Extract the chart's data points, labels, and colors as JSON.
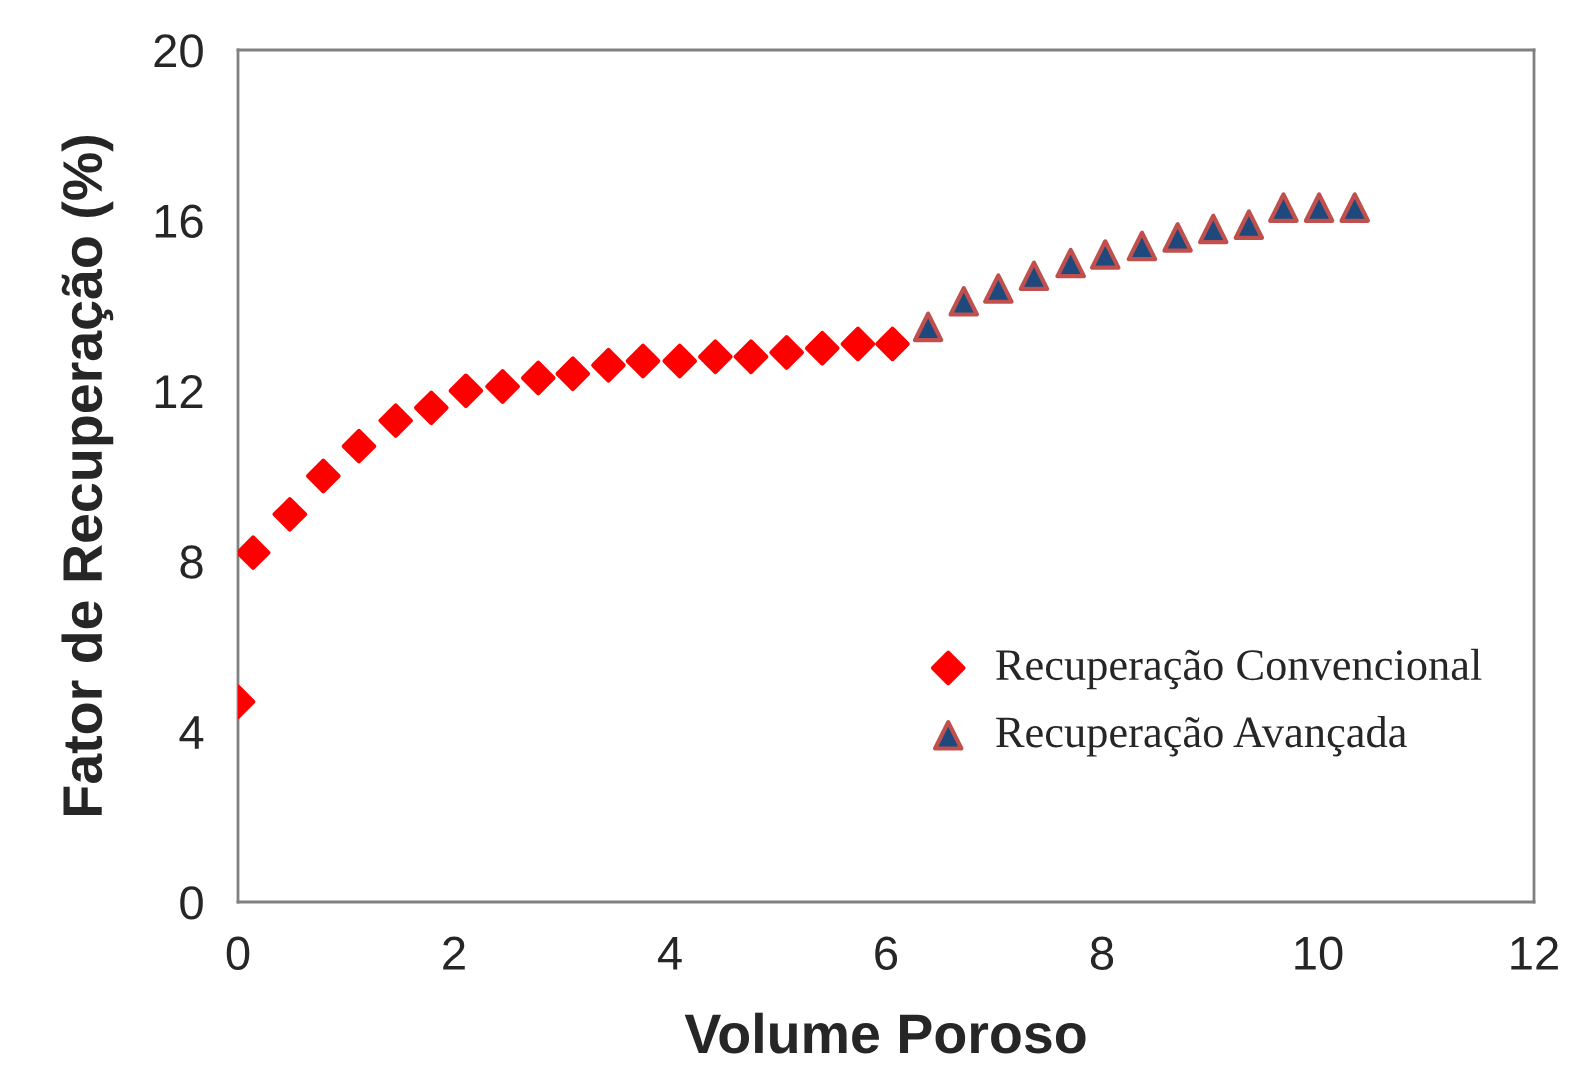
{
  "chart_data": {
    "type": "scatter",
    "xlabel": "Volume Poroso",
    "ylabel": "Fator de Recuperação (%)",
    "xlim": [
      0,
      12
    ],
    "xticks": [
      0,
      2,
      4,
      6,
      8,
      10,
      12
    ],
    "ylim": [
      0,
      20
    ],
    "yticks": [
      0,
      4,
      8,
      12,
      16,
      20
    ],
    "grid": false,
    "legend": "bottom right",
    "series": [
      {
        "name": "Recuperação Convencional",
        "color": "#ff0000",
        "marker": "diamond",
        "x": [
          0,
          0.14,
          0.48,
          0.79,
          1.12,
          1.46,
          1.79,
          2.11,
          2.45,
          2.78,
          3.1,
          3.43,
          3.75,
          4.09,
          4.42,
          4.75,
          5.08,
          5.41,
          5.74,
          6.06
        ],
        "values": [
          4.7,
          8.2,
          9.1,
          10.0,
          10.7,
          11.3,
          11.6,
          12.0,
          12.1,
          12.3,
          12.4,
          12.6,
          12.7,
          12.7,
          12.8,
          12.8,
          12.9,
          13.0,
          13.1,
          13.1
        ]
      },
      {
        "name": "Recuperação Avançada",
        "color": "#1f497d",
        "marker": "triangle",
        "x": [
          6.39,
          6.72,
          7.04,
          7.37,
          7.71,
          8.03,
          8.37,
          8.7,
          9.03,
          9.36,
          9.68,
          10.01,
          10.34
        ],
        "values": [
          13.5,
          14.1,
          14.4,
          14.7,
          15.0,
          15.2,
          15.4,
          15.6,
          15.8,
          15.9,
          16.3,
          16.3,
          16.3
        ]
      }
    ]
  }
}
